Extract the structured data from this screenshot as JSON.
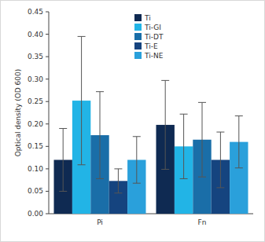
{
  "chart_data": {
    "type": "bar",
    "y_label": "Optical density (OD 600)",
    "categories": [
      "Pi",
      "Fn"
    ],
    "ylim": [
      0,
      0.45
    ],
    "yticks": [
      {
        "value": 0,
        "label": "0.00"
      },
      0.05,
      {
        "value": 0.1,
        "label": "0.10"
      },
      0.15,
      {
        "value": 0.2,
        "label": "0.20"
      },
      0.25,
      {
        "value": 0.3,
        "label": "0.30"
      },
      0.35,
      {
        "value": 0.4,
        "label": "0.40"
      },
      0.45
    ],
    "grid": false,
    "legend": "top",
    "series": [
      {
        "name": "Ti",
        "color": "#0f2a52",
        "values": [
          0.12,
          0.198
        ],
        "errors": [
          0.07,
          0.099
        ]
      },
      {
        "name": "Ti-GI",
        "color": "#22b4e6",
        "values": [
          0.252,
          0.15
        ],
        "errors": [
          0.143,
          0.072
        ]
      },
      {
        "name": "Ti-DT",
        "color": "#1a6ea8",
        "values": [
          0.175,
          0.165
        ],
        "errors": [
          0.097,
          0.083
        ]
      },
      {
        "name": "Ti-E",
        "color": "#15447f",
        "values": [
          0.073,
          0.12
        ],
        "errors": [
          0.027,
          0.062
        ]
      },
      {
        "name": "Ti-NE",
        "color": "#2aa0db",
        "values": [
          0.12,
          0.16
        ],
        "errors": [
          0.052,
          0.058
        ]
      }
    ]
  }
}
